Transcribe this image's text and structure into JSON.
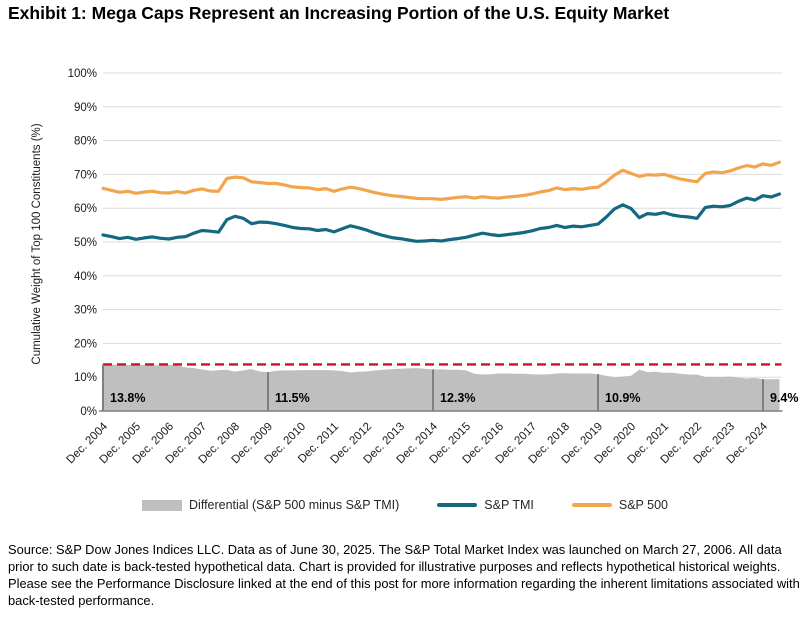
{
  "page": {
    "title": "Exhibit 1: Mega Caps Represent an Increasing Portion of the U.S. Equity Market",
    "source_note": "Source: S&P Dow Jones Indices LLC. Data as of June 30, 2025. The S&P Total Market Index was launched on March 27, 2006. All data prior to such date is back-tested hypothetical data. Chart is provided for illustrative purposes and reflects hypothetical historical weights. Please see the Performance Disclosure linked at the end of this post for more information regarding the inherent limitations associated with back-tested performance."
  },
  "chart_data": {
    "type": "line",
    "title": "Exhibit 1: Mega Caps Represent an Increasing Portion of the U.S. Equity Market",
    "xlabel": "",
    "ylabel": "Cumulative Weight of Top 100 Constituents (%)",
    "ylim": [
      0,
      100
    ],
    "y_tick_step": 10,
    "y_tick_suffix": "%",
    "grid": "horizontal",
    "legend_position": "bottom",
    "x_axis": {
      "tick_labels": [
        "Dec. 2004",
        "Dec. 2005",
        "Dec. 2006",
        "Dec. 2007",
        "Dec. 2008",
        "Dec. 2009",
        "Dec. 2010",
        "Dec. 2011",
        "Dec. 2012",
        "Dec. 2013",
        "Dec. 2014",
        "Dec. 2015",
        "Dec. 2016",
        "Dec. 2017",
        "Dec. 2018",
        "Dec. 2019",
        "Dec. 2020",
        "Dec. 2021",
        "Dec. 2022",
        "Dec. 2023",
        "Dec. 2024"
      ],
      "points_per_tick": 4,
      "sampling": "quarterly from Dec. 2004, last point Jun. 2025"
    },
    "series": [
      {
        "name": "S&P 500",
        "color": "#F3A54E",
        "style": "line",
        "values": [
          65.9,
          65.3,
          64.7,
          65.0,
          64.4,
          64.8,
          65.0,
          64.6,
          64.5,
          64.9,
          64.5,
          65.3,
          65.7,
          65.1,
          65.0,
          68.8,
          69.2,
          69.0,
          67.8,
          67.6,
          67.3,
          67.3,
          66.9,
          66.3,
          66.1,
          66.0,
          65.5,
          65.8,
          65.0,
          65.7,
          66.2,
          65.8,
          65.2,
          64.6,
          64.1,
          63.7,
          63.5,
          63.2,
          62.9,
          62.8,
          62.8,
          62.6,
          62.9,
          63.2,
          63.4,
          63.0,
          63.4,
          63.1,
          63.0,
          63.3,
          63.5,
          63.8,
          64.2,
          64.8,
          65.2,
          66.0,
          65.5,
          65.8,
          65.6,
          66.0,
          66.2,
          67.8,
          69.8,
          71.2,
          70.3,
          69.4,
          69.9,
          69.8,
          70.0,
          69.3,
          68.6,
          68.2,
          67.8,
          70.3,
          70.7,
          70.5,
          71.0,
          71.9,
          72.6,
          72.2,
          73.1,
          72.7,
          73.6
        ]
      },
      {
        "name": "S&P TMI",
        "color": "#146980",
        "style": "line",
        "values": [
          52.1,
          51.6,
          51.0,
          51.4,
          50.8,
          51.2,
          51.5,
          51.1,
          50.9,
          51.4,
          51.6,
          52.6,
          53.4,
          53.2,
          52.9,
          56.6,
          57.6,
          57.0,
          55.4,
          55.9,
          55.8,
          55.4,
          54.9,
          54.3,
          54.0,
          53.9,
          53.4,
          53.7,
          53.0,
          53.9,
          54.8,
          54.2,
          53.5,
          52.6,
          51.9,
          51.3,
          51.0,
          50.6,
          50.2,
          50.3,
          50.5,
          50.3,
          50.7,
          51.0,
          51.4,
          52.0,
          52.6,
          52.2,
          51.9,
          52.2,
          52.5,
          52.8,
          53.3,
          54.0,
          54.3,
          54.9,
          54.3,
          54.7,
          54.5,
          54.9,
          55.3,
          57.4,
          59.8,
          61.0,
          59.9,
          57.2,
          58.4,
          58.2,
          58.7,
          58.0,
          57.6,
          57.4,
          57.0,
          60.2,
          60.6,
          60.4,
          60.8,
          62.0,
          63.0,
          62.4,
          63.7,
          63.3,
          64.2
        ]
      },
      {
        "name": "Differential (S&P 500 minus S&P TMI)",
        "color": "#BFBFBF",
        "style": "area",
        "values": [
          13.8,
          13.7,
          13.7,
          13.6,
          13.6,
          13.6,
          13.5,
          13.5,
          13.6,
          13.5,
          12.9,
          12.7,
          12.3,
          11.9,
          12.1,
          12.2,
          11.6,
          12.0,
          12.4,
          11.7,
          11.5,
          11.9,
          12.0,
          12.0,
          12.1,
          12.1,
          12.1,
          12.1,
          12.0,
          11.8,
          11.4,
          11.6,
          11.7,
          12.0,
          12.2,
          12.4,
          12.5,
          12.6,
          12.7,
          12.5,
          12.3,
          12.3,
          12.2,
          12.2,
          12.0,
          11.0,
          10.8,
          10.9,
          11.1,
          11.1,
          11.0,
          11.0,
          10.9,
          10.8,
          10.9,
          11.1,
          11.2,
          11.1,
          11.1,
          11.1,
          10.9,
          10.4,
          10.0,
          10.2,
          10.4,
          12.2,
          11.5,
          11.6,
          11.3,
          11.3,
          11.0,
          10.8,
          10.8,
          10.1,
          10.1,
          10.1,
          10.2,
          9.9,
          9.6,
          9.8,
          9.4,
          9.4,
          9.4
        ]
      }
    ],
    "reference_line": {
      "y": 13.8,
      "color": "#CE0E2D",
      "style": "dashed"
    },
    "annotations": [
      {
        "index": 0,
        "label": "13.8%"
      },
      {
        "index": 20,
        "label": "11.5%"
      },
      {
        "index": 40,
        "label": "12.3%"
      },
      {
        "index": 60,
        "label": "10.9%"
      },
      {
        "index": 80,
        "label": "9.4%"
      }
    ],
    "annotation_divider_color": "#7F7F7F"
  }
}
